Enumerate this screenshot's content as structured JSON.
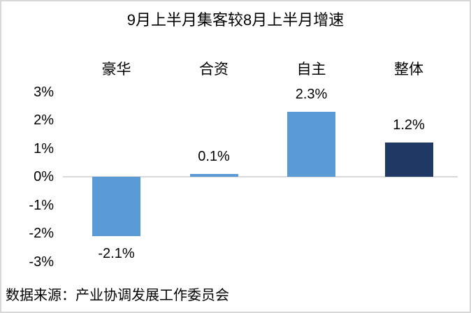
{
  "title": "9月上半月集客较8月上半月增速",
  "source": "数据来源：产业协调发展工作委员会",
  "colors": {
    "bar_light_blue": "#5B9BD5",
    "bar_dark_navy": "#1F3864",
    "axis_line": "#D9D9D9",
    "frame_border": "#D8D8D8",
    "text": "#000000"
  },
  "chart_data": {
    "type": "bar",
    "title": "9月上半月集客较8月上半月增速",
    "categories": [
      "豪华",
      "合资",
      "自主",
      "整体"
    ],
    "values": [
      -2.1,
      0.1,
      2.3,
      1.2
    ],
    "data_labels": [
      "-2.1%",
      "0.1%",
      "2.3%",
      "1.2%"
    ],
    "bar_colors": [
      "#5B9BD5",
      "#5B9BD5",
      "#5B9BD5",
      "#1F3864"
    ],
    "xlabel": "",
    "ylabel": "",
    "ylim": [
      -3,
      3
    ],
    "ytick_labels": [
      "3%",
      "2%",
      "1%",
      "0%",
      "-1%",
      "-2%",
      "-3%"
    ],
    "grid": false,
    "legend": "none",
    "category_label_position": "top",
    "source_note": "数据来源：产业协调发展工作委员会"
  }
}
